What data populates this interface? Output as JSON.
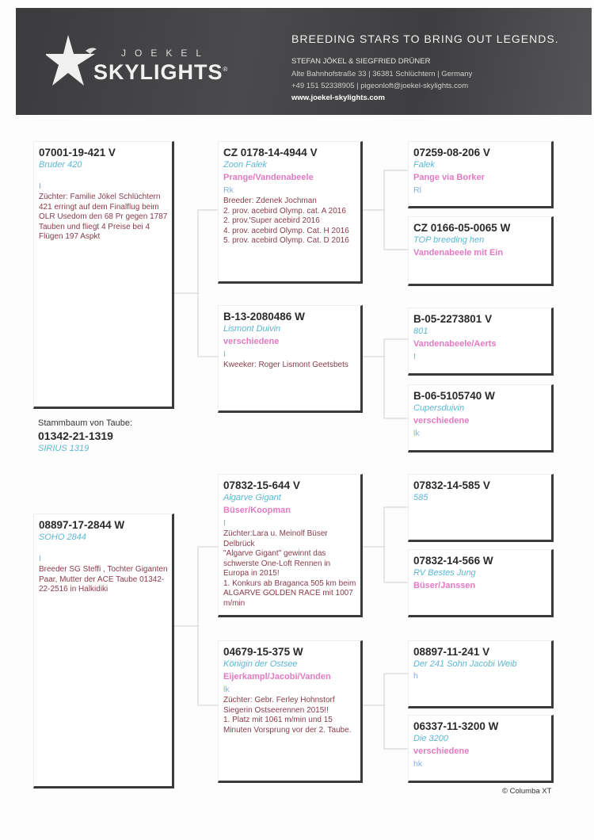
{
  "header": {
    "logo_top": "JOEKEL",
    "logo_main": "SKYLIGHTS",
    "logo_mark": "®",
    "tagline": "BREEDING STARS TO BRING OUT LEGENDS.",
    "owners": "STEFAN JÖKEL & SIEGFRIED DRÜNER",
    "address": "Alte Bahnhofstraße 33 | 36381 Schlüchtern | Germany",
    "contact": "+49 151 52338905 | pigeonloft@joekel-skylights.com",
    "website": "www.joekel-skylights.com",
    "colors": {
      "banner": "#444446"
    }
  },
  "subject": {
    "label": "Stammbaum von Taube:",
    "ring": "01342-21-1319",
    "name": "SIRIUS 1319"
  },
  "pedigree": {
    "sire": {
      "ring": "07001-19-421 V",
      "name": "Bruder 420",
      "strain": "",
      "color": "I",
      "notes": "Züchter: Familie Jökel Schlüchtern 421 erringt auf dem Finalflug beim OLR Usedom den 68 Pr gegen 1787 Tauben und fliegt 4 Preise bei 4 Flügen 197 Aspkt"
    },
    "dam": {
      "ring": "08897-17-2844 W",
      "name": "SOHO 2844",
      "strain": "",
      "color": "I",
      "notes": "Breeder SG Steffi ,  Tochter Giganten Paar, Mutter der ACE Taube 01342-22-2516 in Halkidiki"
    },
    "ss": {
      "ring": "CZ 0178-14-4944 V",
      "name": "Zoon Falek",
      "strain": "Prange/Vandenabeele",
      "color": "Rk",
      "notes": "Breeder: Zdenek Jochman\n2. prov. acebird Olymp. cat. A 2016\n2. prov.'Super acebird 2016\n4. prov. acebird Olymp. Cat. H 2016\n5. prov. acebird Olymp. Cat. D 2016"
    },
    "sd": {
      "ring": "B-13-2080486 W",
      "name": "Lismont Duivin",
      "strain": "verschiedene",
      "color": "I",
      "notes": "Kweeker: Roger Lismont Geetsbets"
    },
    "ds": {
      "ring": "07832-15-644 V",
      "name": "Algarve Gigant",
      "strain": "Büser/Koopman",
      "color": "I",
      "notes": "Züchter:Lara u. Meinolf Büser Delbrück\n\"Algarve Gigant\" gewinnt das schwerste One-Loft Rennen in Europa in 2015!\n1. Konkurs ab Braganca 505 km beim ALGARVE GOLDEN RACE mit 1007 m/min"
    },
    "dd": {
      "ring": "04679-15-375 W",
      "name": "Königin der Ostsee",
      "strain": "Eijerkampl/Jacobi/Vanden",
      "color": "lk",
      "notes": "Züchter: Gebr. Ferley Hohnstorf Siegerin Ostseerennen 2015!!\n1. Platz mit 1061 m/min und 15 Minuten Vorsprung vor der 2. Taube."
    },
    "sss": {
      "ring": "07259-08-206 V",
      "name": "Falek",
      "strain": "Pange via Borker",
      "color": "Rl"
    },
    "ssd": {
      "ring": "CZ  0166-05-0065 W",
      "name": "TOP breeding hen",
      "strain": "Vandenabeele mit Ein",
      "color": ""
    },
    "sds": {
      "ring": "B-05-2273801 V",
      "name": "801",
      "strain": "Vandenabeele/Aerts",
      "color": "I"
    },
    "sdd": {
      "ring": "B-06-5105740 W",
      "name": "Cupersduivin",
      "strain": "verschiedene",
      "color": "lk"
    },
    "dss": {
      "ring": "07832-14-585 V",
      "name": "585",
      "strain": "",
      "color": ""
    },
    "dsd": {
      "ring": "07832-14-566 W",
      "name": "RV Bestes Jung",
      "strain": "Büser/Janssen",
      "color": ""
    },
    "dds": {
      "ring": "08897-11-241 V",
      "name": "Der 241 Sohn Jacobi Weib",
      "strain": "",
      "color": "h"
    },
    "ddd": {
      "ring": "06337-11-3200 W",
      "name": "Die 3200",
      "strain": "verschiedene",
      "color": "hk"
    }
  },
  "footer": {
    "credit": "© Columba XT"
  },
  "colors": {
    "name": "#5ab7d3",
    "strain": "#e27ac4",
    "color_code": "#88aee0",
    "notes": "#8a3b4b"
  }
}
